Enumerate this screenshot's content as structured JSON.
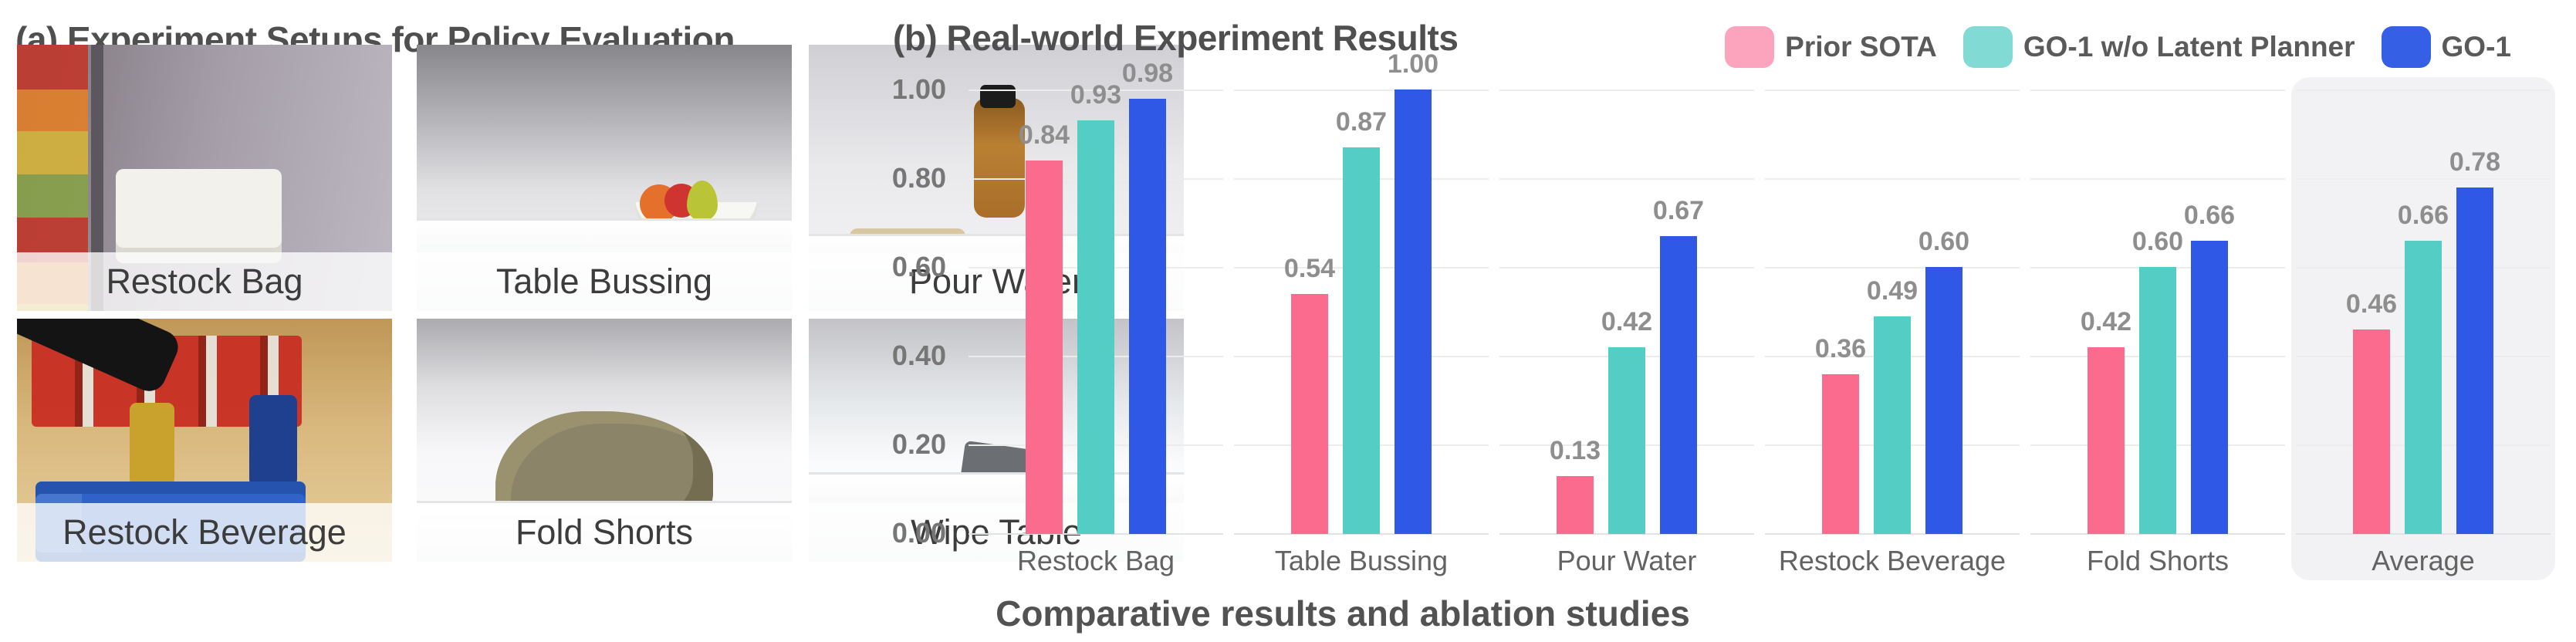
{
  "panel_a": {
    "title": "(a) Experiment Setups for Policy Evaluation",
    "tiles": [
      {
        "label": "Restock Bag",
        "scene": "restock-bag"
      },
      {
        "label": "Table Bussing",
        "scene": "table-bussing"
      },
      {
        "label": "Pour Water",
        "scene": "pour-water"
      },
      {
        "label": "Restock Beverage",
        "scene": "restock-beverage"
      },
      {
        "label": "Fold Shorts",
        "scene": "fold-shorts"
      },
      {
        "label": "Wipe Table",
        "scene": "wipe-table"
      }
    ]
  },
  "panel_b": {
    "title": "(b) Real-world Experiment Results",
    "caption": "Comparative results and ablation studies",
    "legend": [
      {
        "label": "Prior SOTA",
        "swatch_color": "#FCA3BD"
      },
      {
        "label": "GO-1 w/o Latent Planner",
        "swatch_color": "#81DAD4"
      },
      {
        "label": "GO-1",
        "swatch_color": "#3560E6"
      }
    ]
  },
  "chart_data": {
    "type": "bar",
    "title": "(b) Real-world Experiment Results",
    "categories": [
      "Restock Bag",
      "Table Bussing",
      "Pour Water",
      "Restock Beverage",
      "Fold Shorts",
      "Average"
    ],
    "series": [
      {
        "name": "Prior SOTA",
        "color": "#FB6B8E",
        "values": [
          0.84,
          0.54,
          0.13,
          0.36,
          0.42,
          0.46
        ]
      },
      {
        "name": "GO-1 w/o Latent Planner",
        "color": "#54CEC4",
        "values": [
          0.93,
          0.87,
          0.42,
          0.49,
          0.6,
          0.66
        ]
      },
      {
        "name": "GO-1",
        "color": "#2F58E6",
        "values": [
          0.98,
          1.0,
          0.67,
          0.6,
          0.66,
          0.78
        ]
      }
    ],
    "xlabel": "",
    "ylabel": "",
    "ylim": [
      0.0,
      1.0
    ],
    "yticks": [
      "1.00",
      "0.80",
      "0.60",
      "0.40",
      "0.20",
      "0.00"
    ],
    "grid": true,
    "legend_position": "top-right",
    "value_labels": true,
    "value_label_format": "0.00",
    "highlighted_category": "Average",
    "highlight_color": "#F2F2F4"
  }
}
